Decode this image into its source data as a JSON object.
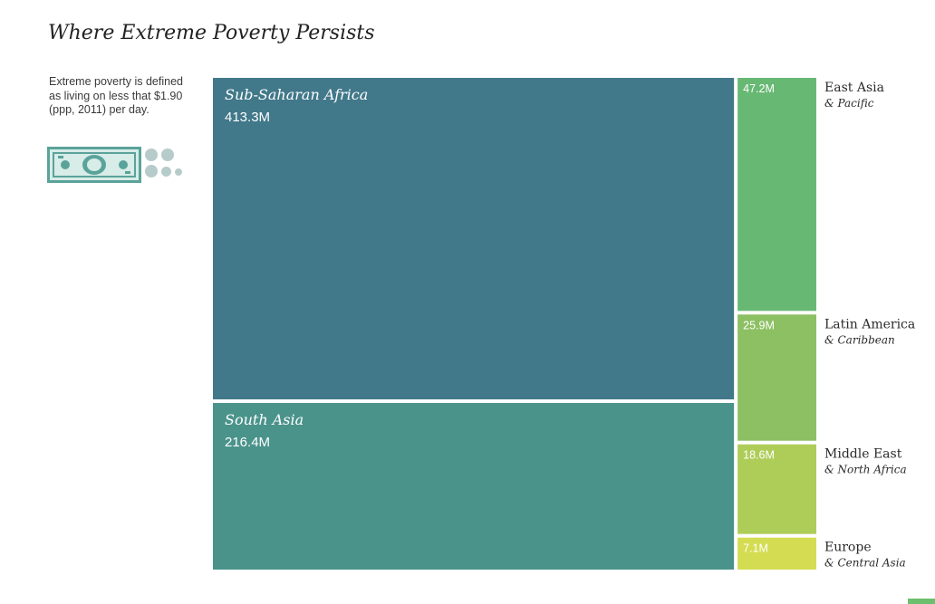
{
  "title": "Where Extreme Poverty Persists",
  "note": "Extreme poverty is defined as living on less that $1.90 (ppp, 2011) per day.",
  "icons": {
    "bill": "dollar-bill-icon",
    "dots": "coin-dots-icon"
  },
  "chart_data": {
    "type": "treemap",
    "units": "M",
    "cells": [
      {
        "name": "Sub-Saharan Africa",
        "sublabel": "",
        "value": 413.3,
        "label": "413.3M",
        "color": "#41788a",
        "label_inside": true
      },
      {
        "name": "South Asia",
        "sublabel": "",
        "value": 216.4,
        "label": "216.4M",
        "color": "#4a938b",
        "label_inside": true
      },
      {
        "name": "East Asia",
        "sublabel": "& Pacific",
        "value": 47.2,
        "label": "47.2M",
        "color": "#67b873",
        "label_inside": false
      },
      {
        "name": "Latin America",
        "sublabel": "& Caribbean",
        "value": 25.9,
        "label": "25.9M",
        "color": "#8cc063",
        "label_inside": false
      },
      {
        "name": "Middle East",
        "sublabel": "& North Africa",
        "value": 18.6,
        "label": "18.6M",
        "color": "#aecd58",
        "label_inside": false
      },
      {
        "name": "Europe",
        "sublabel": "& Central Asia",
        "value": 7.1,
        "label": "7.1M",
        "color": "#d4dc52",
        "label_inside": false
      }
    ]
  }
}
